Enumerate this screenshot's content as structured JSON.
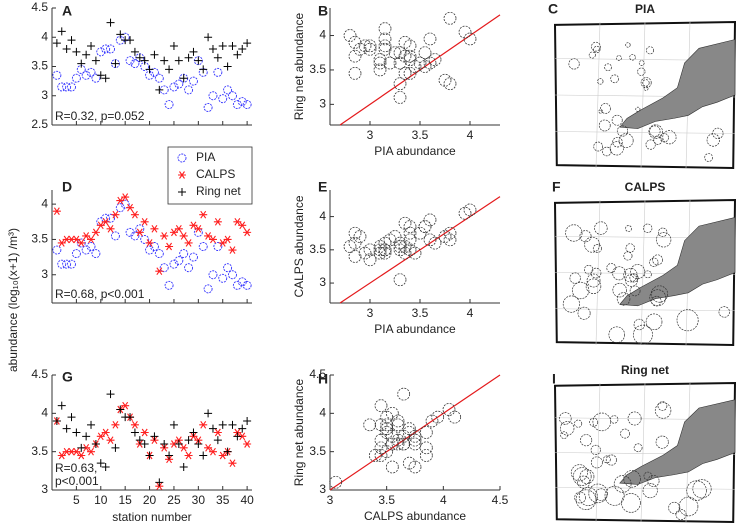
{
  "chart_data": [
    {
      "type": "station",
      "label": "A",
      "x": [
        1,
        2,
        3,
        4,
        5,
        6,
        7,
        8,
        9,
        10,
        11,
        12,
        13,
        14,
        15,
        16,
        17,
        18,
        19,
        20,
        21,
        22,
        23,
        24,
        25,
        26,
        27,
        28,
        29,
        30,
        31,
        32,
        33,
        34,
        35,
        36,
        37,
        38,
        39,
        40
      ],
      "series": [
        {
          "name": "PIA",
          "color": "#3333ff",
          "marker": "circle",
          "values": [
            3.35,
            3.15,
            3.15,
            3.15,
            3.3,
            3.45,
            3.35,
            3.4,
            3.3,
            3.75,
            3.8,
            3.8,
            3.55,
            3.95,
            4.0,
            3.6,
            3.55,
            3.65,
            3.5,
            3.35,
            3.4,
            3.3,
            3.1,
            2.85,
            3.15,
            3.2,
            3.3,
            3.1,
            3.25,
            3.6,
            3.4,
            2.8,
            3.0,
            3.4,
            2.95,
            3.1,
            3.0,
            2.85,
            2.9,
            2.85
          ]
        },
        {
          "name": "Ring net",
          "color": "#000000",
          "marker": "plus",
          "values": [
            3.9,
            4.1,
            3.8,
            3.95,
            3.75,
            3.55,
            3.7,
            3.85,
            3.6,
            3.35,
            3.3,
            4.25,
            3.55,
            4.05,
            3.95,
            3.95,
            3.75,
            3.65,
            3.6,
            3.45,
            3.7,
            3.1,
            3.6,
            3.45,
            3.85,
            3.6,
            3.3,
            3.65,
            3.75,
            3.6,
            3.45,
            4.0,
            3.8,
            3.65,
            3.85,
            3.5,
            3.85,
            3.7,
            3.8,
            3.9
          ]
        }
      ],
      "xlim": [
        0,
        41
      ],
      "xticks": [
        5,
        10,
        15,
        20,
        25,
        30,
        35,
        40
      ],
      "xtick_labels": false,
      "ylim": [
        2.5,
        4.5
      ],
      "yticks": [
        2.5,
        3,
        3.5,
        4,
        4.5
      ],
      "annotation": [
        "R=0.32, p=0.052"
      ]
    },
    {
      "type": "scatter",
      "label": "B",
      "xlabel": "PIA abundance",
      "ylabel": "Ring net abundance",
      "x": [
        3.35,
        3.15,
        3.15,
        3.15,
        3.3,
        3.45,
        3.35,
        3.4,
        3.3,
        3.75,
        3.8,
        3.8,
        3.55,
        3.95,
        4.0,
        3.6,
        3.55,
        3.65,
        3.5,
        3.35,
        3.4,
        3.3,
        3.1,
        2.85,
        3.15,
        3.2,
        3.3,
        3.1,
        3.25,
        3.6,
        3.4,
        2.8,
        3.0,
        3.4,
        2.95,
        3.1,
        3.0,
        2.85,
        2.9,
        2.85
      ],
      "y": [
        3.9,
        4.1,
        3.8,
        3.95,
        3.75,
        3.55,
        3.7,
        3.85,
        3.6,
        3.35,
        3.3,
        4.25,
        3.55,
        4.05,
        3.95,
        3.95,
        3.75,
        3.65,
        3.6,
        3.45,
        3.7,
        3.1,
        3.6,
        3.45,
        3.85,
        3.6,
        3.3,
        3.65,
        3.75,
        3.6,
        3.45,
        4.0,
        3.8,
        3.65,
        3.85,
        3.5,
        3.85,
        3.7,
        3.8,
        3.9
      ],
      "xlim": [
        2.6,
        4.3
      ],
      "xticks": [
        3,
        3.5,
        4
      ],
      "ylim": [
        2.7,
        4.4
      ],
      "yticks": [
        3,
        3.5,
        4
      ],
      "diagonal": true,
      "line_color": "#e41a1c"
    },
    {
      "type": "map",
      "label": "C",
      "title": "PIA"
    },
    {
      "type": "station",
      "label": "D",
      "x": [
        1,
        2,
        3,
        4,
        5,
        6,
        7,
        8,
        9,
        10,
        11,
        12,
        13,
        14,
        15,
        16,
        17,
        18,
        19,
        20,
        21,
        22,
        23,
        24,
        25,
        26,
        27,
        28,
        29,
        30,
        31,
        32,
        33,
        34,
        35,
        36,
        37,
        38,
        39,
        40
      ],
      "series": [
        {
          "name": "PIA",
          "color": "#3333ff",
          "marker": "circle",
          "values": [
            3.35,
            3.15,
            3.15,
            3.15,
            3.3,
            3.45,
            3.35,
            3.4,
            3.3,
            3.75,
            3.8,
            3.8,
            3.55,
            3.95,
            4.0,
            3.6,
            3.55,
            3.65,
            3.5,
            3.35,
            3.4,
            3.3,
            3.1,
            2.85,
            3.15,
            3.2,
            3.3,
            3.1,
            3.25,
            3.6,
            3.4,
            2.8,
            3.0,
            3.4,
            2.95,
            3.1,
            3.0,
            2.85,
            2.9,
            2.85
          ]
        },
        {
          "name": "CALPS",
          "color": "#ff2020",
          "marker": "star",
          "values": [
            3.9,
            3.45,
            3.5,
            3.5,
            3.5,
            3.45,
            3.55,
            3.5,
            3.6,
            3.7,
            3.75,
            3.65,
            3.85,
            4.05,
            4.1,
            3.95,
            3.85,
            3.6,
            3.75,
            3.45,
            3.65,
            3.05,
            3.55,
            3.4,
            3.6,
            3.65,
            3.55,
            3.45,
            3.7,
            3.65,
            3.85,
            3.55,
            3.5,
            3.75,
            3.45,
            3.5,
            3.35,
            3.75,
            3.7,
            3.6
          ]
        }
      ],
      "xlim": [
        0,
        41
      ],
      "xticks": [
        5,
        10,
        15,
        20,
        25,
        30,
        35,
        40
      ],
      "xtick_labels": false,
      "ylim": [
        2.6,
        4.2
      ],
      "yticks": [
        3,
        3.5,
        4
      ],
      "annotation": [
        "R=0.68, p<0.001"
      ],
      "legend": "upper right"
    },
    {
      "type": "scatter",
      "label": "E",
      "xlabel": "PIA abundance",
      "ylabel": "CALPS abundance",
      "x": [
        3.35,
        3.15,
        3.15,
        3.15,
        3.3,
        3.45,
        3.35,
        3.4,
        3.3,
        3.75,
        3.8,
        3.8,
        3.55,
        3.95,
        4.0,
        3.6,
        3.55,
        3.65,
        3.5,
        3.35,
        3.4,
        3.3,
        3.1,
        2.85,
        3.15,
        3.2,
        3.3,
        3.1,
        3.25,
        3.6,
        3.4,
        2.8,
        3.0,
        3.4,
        2.95,
        3.1,
        3.0,
        2.85,
        2.9,
        2.85
      ],
      "y": [
        3.9,
        3.45,
        3.5,
        3.5,
        3.5,
        3.45,
        3.55,
        3.5,
        3.6,
        3.7,
        3.75,
        3.65,
        3.85,
        4.05,
        4.1,
        3.95,
        3.85,
        3.6,
        3.75,
        3.45,
        3.65,
        3.05,
        3.55,
        3.4,
        3.6,
        3.65,
        3.55,
        3.45,
        3.7,
        3.65,
        3.85,
        3.55,
        3.5,
        3.75,
        3.45,
        3.5,
        3.35,
        3.75,
        3.7,
        3.6
      ],
      "xlim": [
        2.6,
        4.3
      ],
      "xticks": [
        3,
        3.5,
        4
      ],
      "ylim": [
        2.7,
        4.4
      ],
      "yticks": [
        3,
        3.5,
        4
      ],
      "diagonal": true,
      "line_color": "#e41a1c"
    },
    {
      "type": "map",
      "label": "F",
      "title": "CALPS"
    },
    {
      "type": "station",
      "label": "G",
      "xlabel": "station number",
      "x": [
        1,
        2,
        3,
        4,
        5,
        6,
        7,
        8,
        9,
        10,
        11,
        12,
        13,
        14,
        15,
        16,
        17,
        18,
        19,
        20,
        21,
        22,
        23,
        24,
        25,
        26,
        27,
        28,
        29,
        30,
        31,
        32,
        33,
        34,
        35,
        36,
        37,
        38,
        39,
        40
      ],
      "series": [
        {
          "name": "CALPS",
          "color": "#ff2020",
          "marker": "star",
          "values": [
            3.9,
            3.45,
            3.5,
            3.5,
            3.5,
            3.45,
            3.55,
            3.5,
            3.6,
            3.7,
            3.75,
            3.65,
            3.85,
            4.05,
            4.1,
            3.95,
            3.85,
            3.6,
            3.75,
            3.45,
            3.65,
            3.05,
            3.55,
            3.4,
            3.6,
            3.65,
            3.55,
            3.45,
            3.7,
            3.65,
            3.85,
            3.55,
            3.5,
            3.75,
            3.45,
            3.5,
            3.35,
            3.75,
            3.7,
            3.6
          ]
        },
        {
          "name": "Ring net",
          "color": "#000000",
          "marker": "plus",
          "values": [
            3.9,
            4.1,
            3.8,
            3.95,
            3.75,
            3.55,
            3.7,
            3.85,
            3.6,
            3.35,
            3.3,
            4.25,
            3.55,
            4.05,
            3.95,
            3.95,
            3.75,
            3.65,
            3.6,
            3.45,
            3.7,
            3.1,
            3.6,
            3.45,
            3.85,
            3.6,
            3.3,
            3.65,
            3.75,
            3.6,
            3.45,
            4.0,
            3.8,
            3.65,
            3.85,
            3.5,
            3.85,
            3.7,
            3.8,
            3.9
          ]
        }
      ],
      "xlim": [
        0,
        41
      ],
      "xticks": [
        5,
        10,
        15,
        20,
        25,
        30,
        35,
        40
      ],
      "xtick_labels": true,
      "ylim": [
        3,
        4.5
      ],
      "yticks": [
        3,
        3.5,
        4,
        4.5
      ],
      "annotation": [
        "R=0.63,",
        "p<0.001"
      ]
    },
    {
      "type": "scatter",
      "label": "H",
      "xlabel": "CALPS abundance",
      "ylabel": "Ring net abundance",
      "x": [
        3.9,
        3.45,
        3.5,
        3.5,
        3.5,
        3.45,
        3.55,
        3.5,
        3.6,
        3.7,
        3.75,
        3.65,
        3.85,
        4.05,
        4.1,
        3.95,
        3.85,
        3.6,
        3.75,
        3.45,
        3.65,
        3.05,
        3.55,
        3.4,
        3.6,
        3.65,
        3.55,
        3.45,
        3.7,
        3.65,
        3.85,
        3.55,
        3.5,
        3.75,
        3.45,
        3.5,
        3.35,
        3.75,
        3.7,
        3.6
      ],
      "y": [
        3.9,
        4.1,
        3.8,
        3.95,
        3.75,
        3.55,
        3.7,
        3.85,
        3.6,
        3.35,
        3.3,
        4.25,
        3.55,
        4.05,
        3.95,
        3.95,
        3.75,
        3.65,
        3.6,
        3.45,
        3.7,
        3.1,
        3.6,
        3.45,
        3.85,
        3.6,
        3.3,
        3.65,
        3.75,
        3.6,
        3.45,
        4.0,
        3.8,
        3.65,
        3.85,
        3.5,
        3.85,
        3.7,
        3.8,
        3.9
      ],
      "xlim": [
        3,
        4.5
      ],
      "xticks": [
        3,
        3.5,
        4,
        4.5
      ],
      "ylim": [
        3,
        4.5
      ],
      "yticks": [
        3,
        3.5,
        4,
        4.5
      ],
      "diagonal": true,
      "line_color": "#e41a1c"
    },
    {
      "type": "map",
      "label": "I",
      "title": "Ring net"
    }
  ],
  "ylabel": "abundance (log₁₀(x+1) /m³)"
}
